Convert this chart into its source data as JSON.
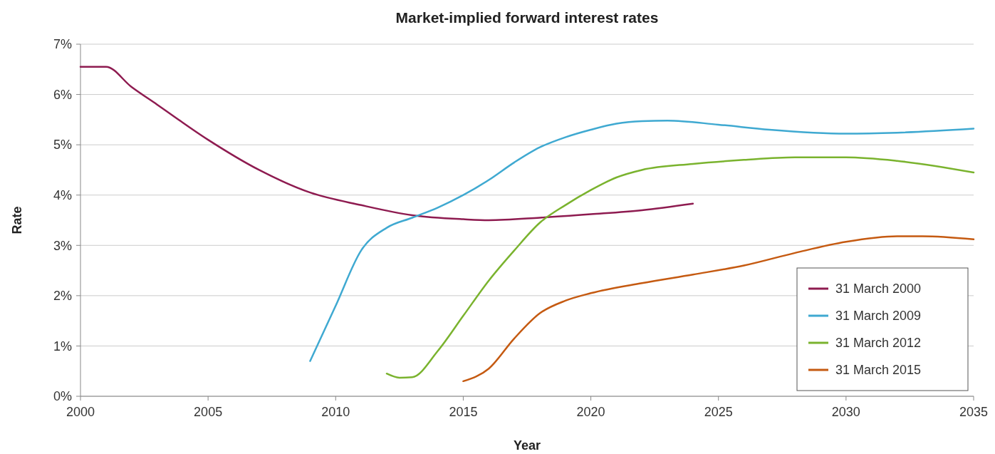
{
  "chart_data": {
    "type": "line",
    "title": "Market-implied forward interest rates",
    "xlabel": "Year",
    "ylabel": "Rate",
    "xlim": [
      2000,
      2035
    ],
    "xticks": [
      2000,
      2005,
      2010,
      2015,
      2020,
      2025,
      2030,
      2035
    ],
    "ylim": [
      0,
      7
    ],
    "yticks": [
      {
        "value": 0,
        "label": "0%"
      },
      {
        "value": 1,
        "label": "1%"
      },
      {
        "value": 2,
        "label": "2%"
      },
      {
        "value": 3,
        "label": "3%"
      },
      {
        "value": 4,
        "label": "4%"
      },
      {
        "value": 5,
        "label": "5%"
      },
      {
        "value": 6,
        "label": "6%"
      },
      {
        "value": 7,
        "label": "7%"
      }
    ],
    "grid": "y",
    "legend": "bottom right",
    "marker": "none",
    "line_style": "solid",
    "series": [
      {
        "name": "31 March 2000",
        "color": "#8e1b50",
        "x": [
          2000,
          2001,
          2002,
          2003,
          2005,
          2007,
          2009,
          2011,
          2013,
          2015,
          2016,
          2018,
          2020,
          2022,
          2024
        ],
        "values": [
          6.55,
          6.55,
          6.15,
          5.8,
          5.1,
          4.5,
          4.05,
          3.8,
          3.6,
          3.52,
          3.5,
          3.55,
          3.62,
          3.7,
          3.83
        ]
      },
      {
        "name": "31 March 2009",
        "color": "#3fa9d1",
        "x": [
          2009,
          2010,
          2011,
          2012,
          2013,
          2014,
          2015,
          2016,
          2017,
          2018,
          2019,
          2020,
          2021,
          2022,
          2023,
          2025,
          2027,
          2030,
          2032,
          2035
        ],
        "values": [
          0.7,
          1.8,
          2.9,
          3.35,
          3.55,
          3.75,
          4.0,
          4.3,
          4.65,
          4.95,
          5.15,
          5.3,
          5.42,
          5.47,
          5.48,
          5.4,
          5.3,
          5.22,
          5.24,
          5.32
        ]
      },
      {
        "name": "31 March 2012",
        "color": "#7ab32e",
        "x": [
          2012,
          2012.5,
          2013,
          2014,
          2015,
          2016,
          2017,
          2018,
          2019,
          2020,
          2021,
          2022,
          2024,
          2026,
          2028,
          2030,
          2032,
          2035
        ],
        "values": [
          0.45,
          0.37,
          0.38,
          0.9,
          1.6,
          2.3,
          2.9,
          3.45,
          3.8,
          4.1,
          4.35,
          4.5,
          4.62,
          4.7,
          4.75,
          4.75,
          4.68,
          4.45
        ]
      },
      {
        "name": "31 March 2015",
        "color": "#c55a11",
        "x": [
          2015,
          2016,
          2017,
          2018,
          2019,
          2020,
          2022,
          2024,
          2026,
          2028,
          2030,
          2032,
          2033,
          2035
        ],
        "values": [
          0.3,
          0.55,
          1.15,
          1.65,
          1.9,
          2.05,
          2.25,
          2.42,
          2.6,
          2.85,
          3.07,
          3.18,
          3.18,
          3.12
        ]
      }
    ]
  }
}
